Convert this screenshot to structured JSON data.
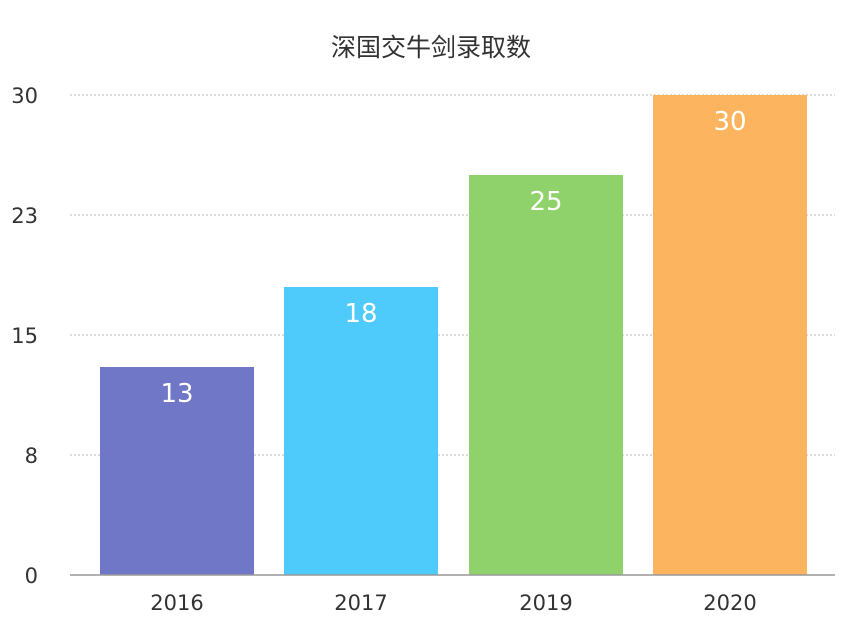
{
  "chart_data": {
    "type": "bar",
    "title": "深国交牛剑录取数",
    "categories": [
      "2016",
      "2017",
      "2019",
      "2020"
    ],
    "values": [
      13,
      18,
      25,
      30
    ],
    "yticks": [
      "0",
      "8",
      "15",
      "23",
      "30"
    ],
    "ytick_values": [
      0,
      7.5,
      15,
      22.5,
      30
    ],
    "ylim": [
      0,
      30
    ],
    "xlabel": "",
    "ylabel": "",
    "grid": "horizontal dashed",
    "legend": "none",
    "colors": [
      "#6f77c6",
      "#4ecbfa",
      "#8fd26b",
      "#fdb45f"
    ],
    "data_label_color": "#ffffff"
  }
}
